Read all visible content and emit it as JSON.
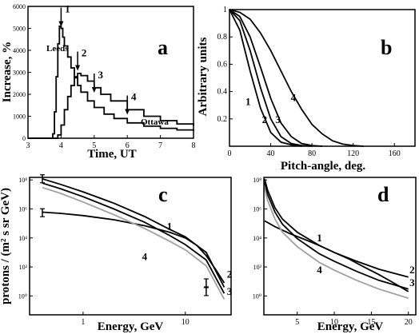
{
  "chart_data": [
    {
      "panel": "a",
      "type": "line",
      "xlabel": "Time, UT",
      "ylabel": "Increase, %",
      "xlim": [
        3,
        8
      ],
      "ylim": [
        0,
        6000
      ],
      "xticks": [
        3,
        4,
        5,
        6,
        7,
        8
      ],
      "yticks": [
        0,
        1000,
        2000,
        3000,
        4000,
        5000,
        6000
      ],
      "grid": false,
      "series": [
        {
          "name": "Leeds",
          "style": "step",
          "x": [
            3.0,
            3.7,
            3.75,
            3.8,
            3.85,
            3.9,
            3.95,
            4.0,
            4.05,
            4.1,
            4.2,
            4.3,
            4.4,
            4.5,
            4.6,
            4.8,
            5.0,
            5.3,
            5.6,
            6.0,
            6.5,
            7.0,
            7.5,
            8.0
          ],
          "y": [
            0,
            0,
            200,
            1200,
            2800,
            4300,
            5100,
            5000,
            4600,
            4200,
            3700,
            3200,
            2800,
            2400,
            2100,
            1700,
            1400,
            1100,
            900,
            700,
            550,
            450,
            380,
            330
          ]
        },
        {
          "name": "Ottawa",
          "style": "step",
          "x": [
            3.0,
            3.8,
            3.9,
            4.0,
            4.1,
            4.2,
            4.3,
            4.4,
            4.5,
            4.6,
            4.8,
            5.0,
            5.2,
            5.5,
            6.0,
            6.5,
            7.0,
            7.5,
            8.0
          ],
          "y": [
            0,
            0,
            150,
            600,
            1300,
            1900,
            2400,
            2750,
            2950,
            2850,
            2600,
            2300,
            2000,
            1700,
            1300,
            1000,
            800,
            650,
            550
          ]
        }
      ],
      "annotations": [
        {
          "text": "1",
          "x": 4.0,
          "y": 5000
        },
        {
          "text": "2",
          "x": 4.5,
          "y": 3000
        },
        {
          "text": "3",
          "x": 5.0,
          "y": 2000
        },
        {
          "text": "4",
          "x": 6.0,
          "y": 1000
        }
      ],
      "labels": {
        "leeds": "Leeds",
        "ottawa": "Ottawa",
        "letter": "a"
      }
    },
    {
      "panel": "b",
      "type": "line",
      "xlabel": "Pitch-angle, deg.",
      "ylabel": "Arbitrary units",
      "xlim": [
        0,
        180
      ],
      "ylim": [
        0,
        1
      ],
      "xticks": [
        0,
        40,
        80,
        120,
        160
      ],
      "yticks": [
        0.2,
        0.4,
        0.6,
        0.8,
        1
      ],
      "grid": false,
      "series": [
        {
          "label": "1",
          "x": [
            0,
            10,
            20,
            30,
            40,
            50,
            60,
            70
          ],
          "y": [
            1,
            0.85,
            0.55,
            0.28,
            0.1,
            0.03,
            0.01,
            0
          ]
        },
        {
          "label": "2",
          "x": [
            0,
            10,
            20,
            30,
            40,
            50,
            60,
            70,
            80
          ],
          "y": [
            1,
            0.92,
            0.7,
            0.43,
            0.2,
            0.07,
            0.02,
            0.005,
            0
          ]
        },
        {
          "label": "3",
          "x": [
            0,
            10,
            20,
            30,
            40,
            50,
            60,
            70,
            80,
            90
          ],
          "y": [
            1,
            0.95,
            0.8,
            0.58,
            0.35,
            0.17,
            0.07,
            0.02,
            0.005,
            0
          ]
        },
        {
          "label": "4",
          "x": [
            0,
            10,
            20,
            30,
            40,
            50,
            60,
            70,
            80,
            90,
            100,
            110,
            120,
            130
          ],
          "y": [
            1,
            0.98,
            0.93,
            0.83,
            0.7,
            0.55,
            0.4,
            0.27,
            0.16,
            0.09,
            0.04,
            0.015,
            0.005,
            0
          ]
        }
      ],
      "labels": {
        "letter": "b"
      }
    },
    {
      "panel": "c",
      "type": "line",
      "xlabel": "Energy, GeV",
      "ylabel": "protons / (m² s sr GeV)",
      "xscale": "log",
      "yscale": "log",
      "xlim": [
        0.3,
        28
      ],
      "ylim": [
        0.05,
        150000000.0
      ],
      "xticks": [
        1,
        10
      ],
      "yticks": [
        1,
        100,
        10000,
        1000000,
        100000000
      ],
      "ytick_labels": [
        "10⁰",
        "10²",
        "10⁴",
        "10⁶",
        "10⁸"
      ],
      "grid": false,
      "series": [
        {
          "label": "1",
          "x": [
            0.4,
            0.6,
            1,
            2,
            4,
            7,
            10,
            13,
            16,
            20,
            24
          ],
          "y": [
            600000.0,
            500000.0,
            350000.0,
            180000.0,
            70000.0,
            25000.0,
            10000.0,
            3000.0,
            600.0,
            60,
            8
          ]
        },
        {
          "label": "2",
          "x": [
            0.4,
            0.6,
            1,
            2,
            4,
            7,
            10,
            16,
            24
          ],
          "y": [
            120000000.0,
            50000000.0,
            15000000.0,
            2500000.0,
            300000.0,
            40000.0,
            12000.0,
            1000.0,
            4
          ]
        },
        {
          "label": "3",
          "x": [
            0.4,
            0.6,
            1,
            2,
            4,
            7,
            10,
            16,
            24
          ],
          "y": [
            60000000.0,
            25000000.0,
            7000000.0,
            1000000.0,
            120000.0,
            15000.0,
            3500.0,
            300.0,
            1.5
          ]
        },
        {
          "label": "4",
          "x": [
            0.4,
            0.6,
            1,
            2,
            4,
            7,
            10,
            16,
            24
          ],
          "y": [
            30000000.0,
            12000000.0,
            3000000.0,
            400000.0,
            45000.0,
            6000.0,
            1500.0,
            120.0,
            0.6
          ],
          "color": "#a0a0a0"
        }
      ],
      "error_points": [
        {
          "x": 0.4,
          "y": 550000.0
        },
        {
          "x": 0.4,
          "y": 120000000.0
        },
        {
          "x": 16,
          "y": 8
        },
        {
          "x": 16,
          "y": 2
        }
      ],
      "labels": {
        "letter": "c"
      }
    },
    {
      "panel": "d",
      "type": "line",
      "xlabel": "Energy, GeV",
      "ylabel": "",
      "xscale": "linear",
      "yscale": "log",
      "xlim": [
        0.5,
        21
      ],
      "ylim": [
        0.05,
        150000000.0
      ],
      "xticks": [
        5,
        10,
        15,
        20
      ],
      "yticks": [
        1,
        100,
        10000,
        1000000,
        100000000
      ],
      "ytick_labels": [
        "10⁰",
        "10²",
        "10⁴",
        "10⁶",
        "10⁸"
      ],
      "grid": false,
      "series": [
        {
          "label": "1",
          "x": [
            0.6,
            2,
            4,
            6,
            8,
            10,
            12,
            14,
            16,
            18,
            20
          ],
          "y": [
            150000.0,
            60000.0,
            20000.0,
            8000.0,
            3000.0,
            1000.0,
            350.0,
            100.0,
            30,
            8,
            2
          ]
        },
        {
          "label": "2",
          "x": [
            0.6,
            1,
            2,
            3,
            5,
            8,
            10,
            13,
            16,
            20
          ],
          "y": [
            120000000.0,
            20000000.0,
            1200000.0,
            200000.0,
            25000.0,
            3000.0,
            1000.0,
            250.0,
            70,
            20
          ]
        },
        {
          "label": "3",
          "x": [
            0.6,
            1,
            2,
            3,
            5,
            8,
            10,
            13,
            16,
            20
          ],
          "y": [
            70000000.0,
            10000000.0,
            600000.0,
            90000.0,
            9000.0,
            800.0,
            250.0,
            50,
            12,
            3
          ]
        },
        {
          "label": "4",
          "x": [
            0.6,
            1,
            2,
            3,
            5,
            8,
            10,
            13,
            16,
            20
          ],
          "y": [
            30000000.0,
            4000000.0,
            200000.0,
            25000.0,
            2500.0,
            200.0,
            60,
            12,
            3,
            0.7
          ],
          "color": "#a0a0a0"
        }
      ],
      "labels": {
        "letter": "d"
      }
    }
  ]
}
